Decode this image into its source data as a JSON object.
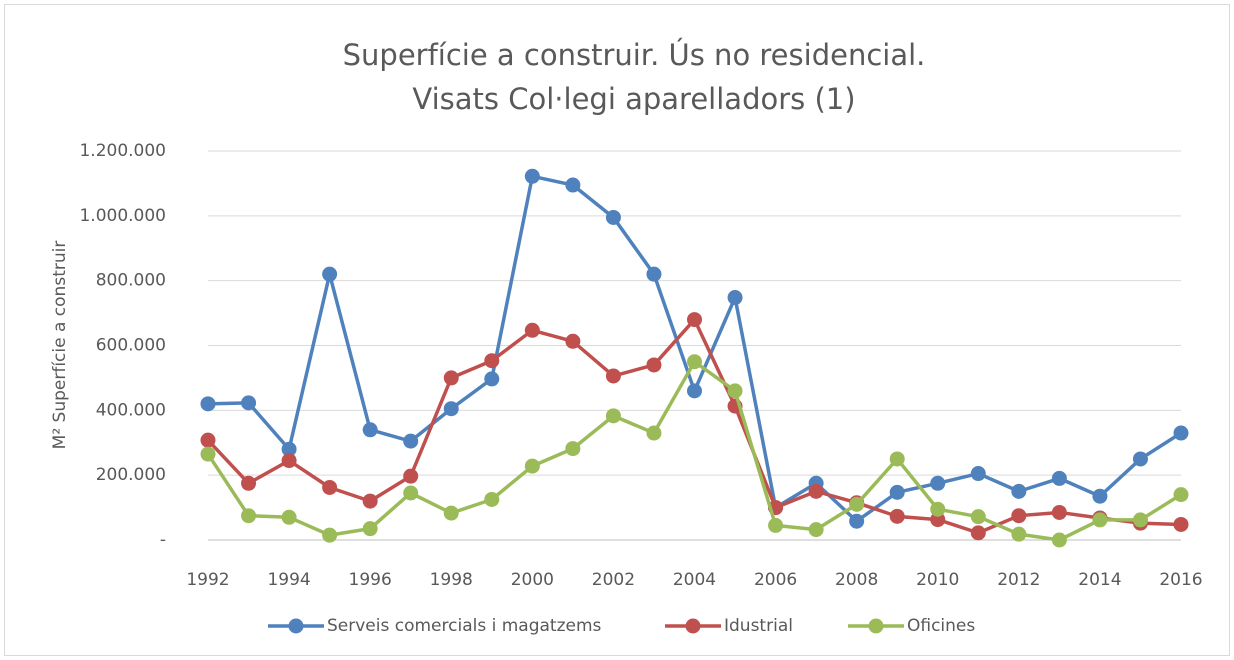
{
  "chart_data": {
    "type": "line",
    "title": [
      "Superfície a construir. Ús no residencial.",
      "Visats Col·legi aparelladors (1)"
    ],
    "y_label": "M² Superfície a construir",
    "x": [
      1992,
      1993,
      1994,
      1995,
      1996,
      1997,
      1998,
      1999,
      2000,
      2001,
      2002,
      2003,
      2004,
      2005,
      2006,
      2007,
      2008,
      2009,
      2010,
      2011,
      2012,
      2013,
      2014,
      2015,
      2016
    ],
    "series": [
      {
        "name": "Serveis comercials i magatzems",
        "color": "#4f81bd",
        "values": [
          420000,
          423000,
          280000,
          820000,
          340000,
          305000,
          405000,
          497000,
          1122000,
          1095000,
          995000,
          820000,
          460000,
          748000,
          100000,
          175000,
          58000,
          147000,
          175000,
          205000,
          150000,
          190000,
          135000,
          250000,
          330000
        ]
      },
      {
        "name": "Idustrial",
        "color": "#c0504d",
        "values": [
          308000,
          175000,
          245000,
          162000,
          120000,
          197000,
          500000,
          553000,
          647000,
          613000,
          506000,
          540000,
          680000,
          413000,
          100000,
          150000,
          115000,
          73000,
          63000,
          22000,
          75000,
          85000,
          68000,
          52000,
          48000
        ]
      },
      {
        "name": "Oficines",
        "color": "#9bbb59",
        "values": [
          265000,
          75000,
          70000,
          15000,
          35000,
          145000,
          83000,
          125000,
          228000,
          282000,
          383000,
          330000,
          550000,
          460000,
          45000,
          32000,
          110000,
          250000,
          95000,
          72000,
          18000,
          0,
          62000,
          62000,
          140000
        ]
      }
    ],
    "xlim": [
      1992,
      2016
    ],
    "xticks": [
      1992,
      1994,
      1996,
      1998,
      2000,
      2002,
      2004,
      2006,
      2008,
      2010,
      2012,
      2014,
      2016
    ],
    "ylim": [
      0,
      1200000
    ],
    "yticks": [
      {
        "value": 0,
        "label": "-"
      },
      {
        "value": 200000,
        "label": "200.000"
      },
      {
        "value": 400000,
        "label": "400.000"
      },
      {
        "value": 600000,
        "label": "600.000"
      },
      {
        "value": 800000,
        "label": "800.000"
      },
      {
        "value": 1000000,
        "label": "1.000.000"
      },
      {
        "value": 1200000,
        "label": "1.200.000"
      }
    ],
    "grid": true,
    "legend": "bottom"
  }
}
